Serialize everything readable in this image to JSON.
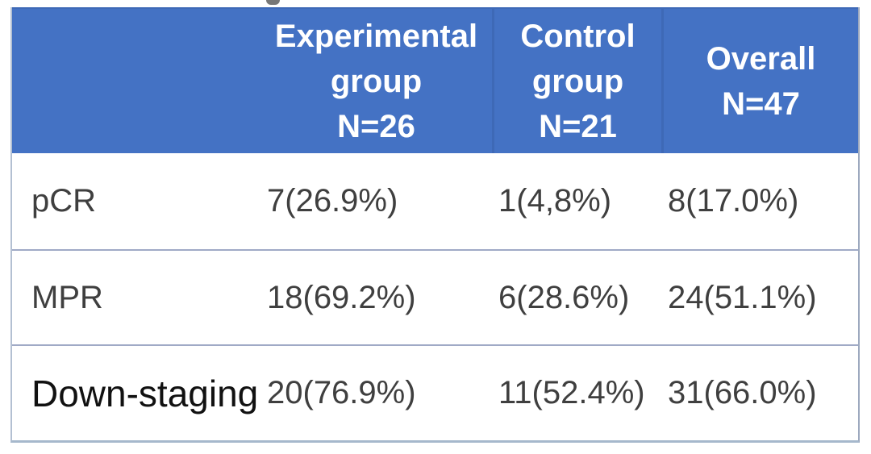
{
  "theme": {
    "page_bg": "#ffffff",
    "header_bg": "#4472c4",
    "header_text": "#ffffff",
    "header_divider": "#3e69b6",
    "body_text": "#3f3f3f",
    "emphasis_text": "#111111",
    "row_divider": "#a0aac6",
    "outer_border": "#b3c0d2"
  },
  "table": {
    "header": {
      "columns": [
        {
          "label": ""
        },
        {
          "label": "Experimental\ngroup\nN=26"
        },
        {
          "label": "Control\ngroup\nN=21"
        },
        {
          "label": "Overall\nN=47"
        }
      ]
    },
    "rows": [
      {
        "label": "pCR",
        "experimental": "7(26.9%)",
        "control": "1(4,8%)",
        "overall": "8(17.0%)"
      },
      {
        "label": "MPR",
        "experimental": "18(69.2%)",
        "control": "6(28.6%)",
        "overall": "24(51.1%)"
      },
      {
        "label": "Down-staging",
        "experimental": "20(76.9%)",
        "control": "11(52.4%)",
        "overall": "31(66.0%)"
      }
    ]
  }
}
